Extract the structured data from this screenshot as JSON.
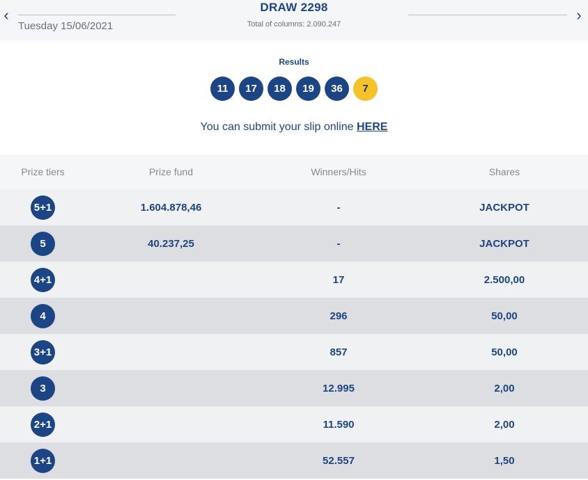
{
  "header": {
    "date": "Tuesday 15/06/2021",
    "title": "DRAW 2298",
    "columns": "Total of columns: 2.090.247",
    "prev_icon": "chevron-left-icon",
    "next_icon": "chevron-right-icon"
  },
  "results": {
    "label": "Results",
    "numbers": [
      "11",
      "17",
      "18",
      "19",
      "36"
    ],
    "bonus": "7",
    "submit_text": "You can submit your slip online ",
    "submit_link": "HERE"
  },
  "table": {
    "headers": {
      "tier": "Prize tiers",
      "fund": "Prize fund",
      "hits": "Winners/Hits",
      "shares": "Shares"
    },
    "rows": [
      {
        "tier": "5+1",
        "fund": "1.604.878,46",
        "hits": "-",
        "shares": "JACKPOT"
      },
      {
        "tier": "5",
        "fund": "40.237,25",
        "hits": "-",
        "shares": "JACKPOT"
      },
      {
        "tier": "4+1",
        "fund": "",
        "hits": "17",
        "shares": "2.500,00"
      },
      {
        "tier": "4",
        "fund": "",
        "hits": "296",
        "shares": "50,00"
      },
      {
        "tier": "3+1",
        "fund": "",
        "hits": "857",
        "shares": "50,00"
      },
      {
        "tier": "3",
        "fund": "",
        "hits": "12.995",
        "shares": "2,00"
      },
      {
        "tier": "2+1",
        "fund": "",
        "hits": "11.590",
        "shares": "2,00"
      },
      {
        "tier": "1+1",
        "fund": "",
        "hits": "52.557",
        "shares": "1,50"
      }
    ]
  },
  "colors": {
    "primary": "#1b4585",
    "bonus": "#f5c22a",
    "row_light": "#f0f1f3",
    "row_dark": "#dcdee2"
  }
}
